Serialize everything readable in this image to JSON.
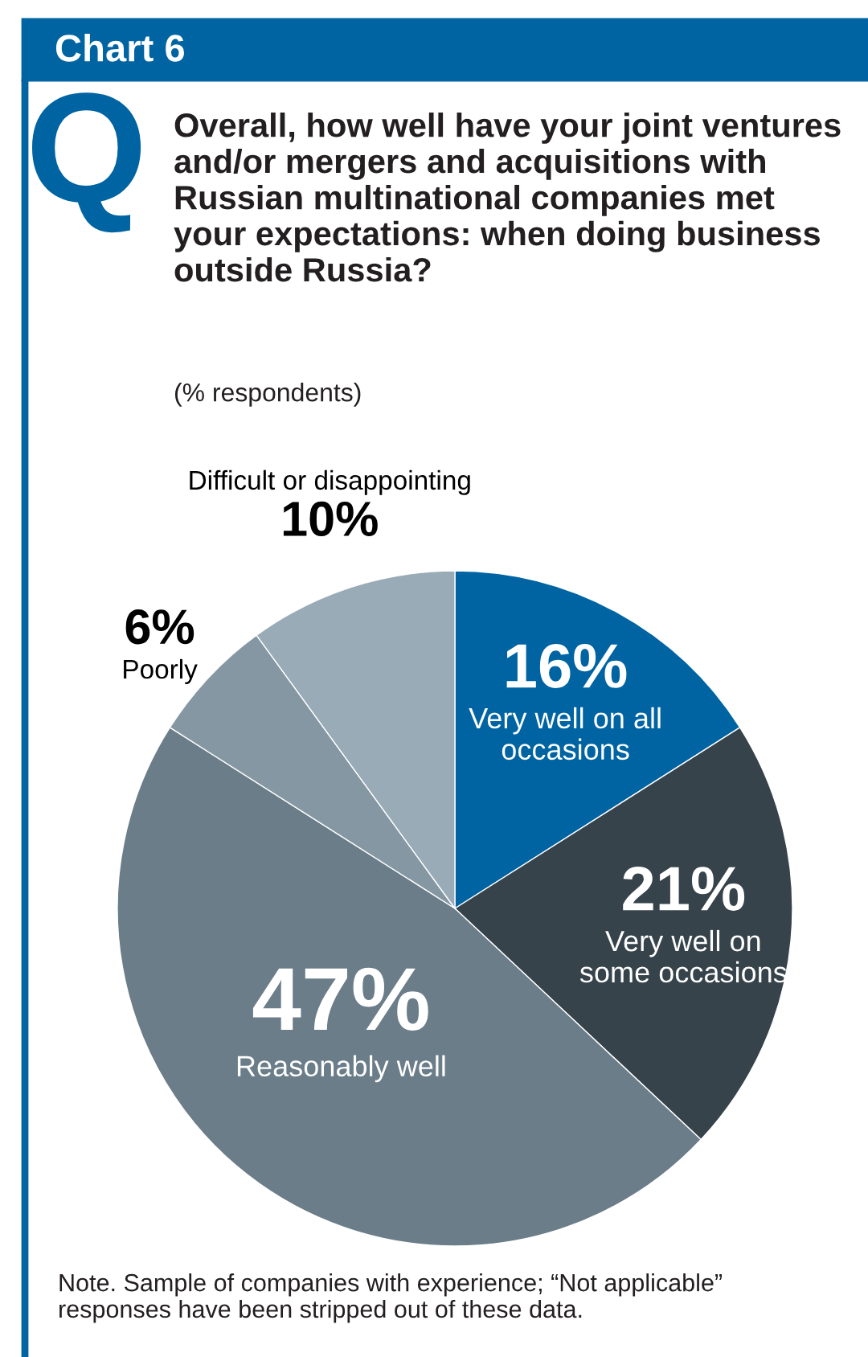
{
  "chart_data": {
    "type": "pie",
    "title": "Chart 6",
    "subtitle": "Overall, how well have your joint ventures and/or mergers and acquisitions with Russian multinational companies met your expectations: when doing business outside Russia?",
    "categories": [
      "Very well on all occasions",
      "Very well on some occasions",
      "Reasonably well",
      "Poorly",
      "Difficult or disappointing"
    ],
    "values": [
      16,
      21,
      47,
      6,
      10
    ],
    "value_labels": [
      "16%",
      "21%",
      "47%",
      "6%",
      "10%"
    ],
    "colors": [
      "#0064a3",
      "#37434a",
      "#6a7d89",
      "#8497a3",
      "#99abb6"
    ],
    "annotations": [
      "Q",
      "(% respondents)",
      "Note. Sample of companies with experience; “Not applicable” responses have been stripped out of these data."
    ]
  }
}
